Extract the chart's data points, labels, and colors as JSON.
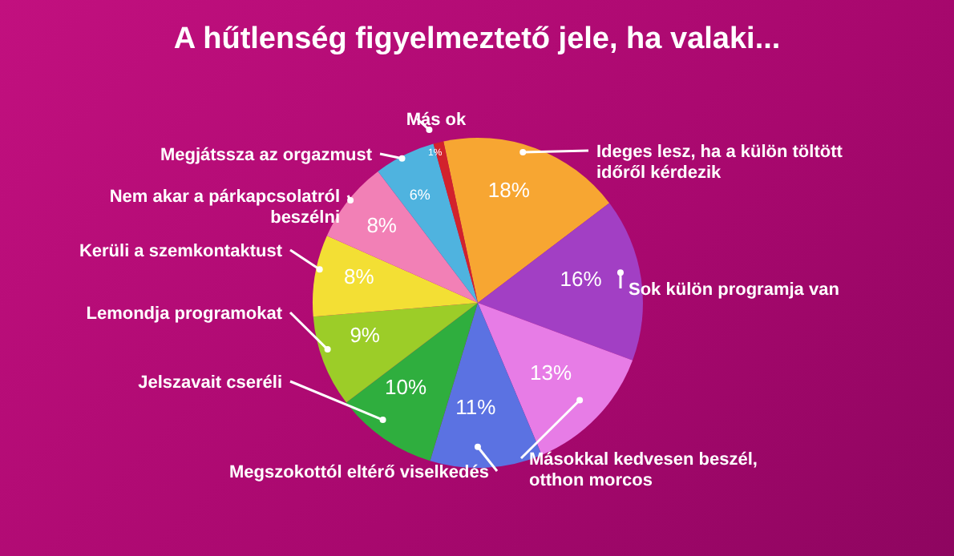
{
  "chart_data": {
    "type": "pie",
    "title": "A hűtlenség figyelmeztető jele, ha valaki...",
    "categories": [
      "Ideges lesz, ha a külön töltött időről kérdezik",
      "Sok külön programja van",
      "Másokkal kedvesen beszél, otthon morcos",
      "Megszokottól eltérő viselkedés",
      "Jelszavait cseréli",
      "Lemondja programokat",
      "Kerüli a szemkontaktust",
      "Nem akar a párkapcsolatról beszélni",
      "Megjátssza az orgazmust",
      "Más ok"
    ],
    "values": [
      18,
      16,
      13,
      11,
      10,
      9,
      8,
      8,
      6,
      1
    ],
    "value_labels": [
      "18%",
      "16%",
      "13%",
      "11%",
      "10%",
      "9%",
      "8%",
      "8%",
      "6%",
      "1%"
    ],
    "colors": [
      "#f7a632",
      "#a23fc4",
      "#e77ce6",
      "#5b72e2",
      "#2fae3e",
      "#9ccd28",
      "#f3df34",
      "#f280b6",
      "#4fb3df",
      "#d2222c"
    ]
  }
}
